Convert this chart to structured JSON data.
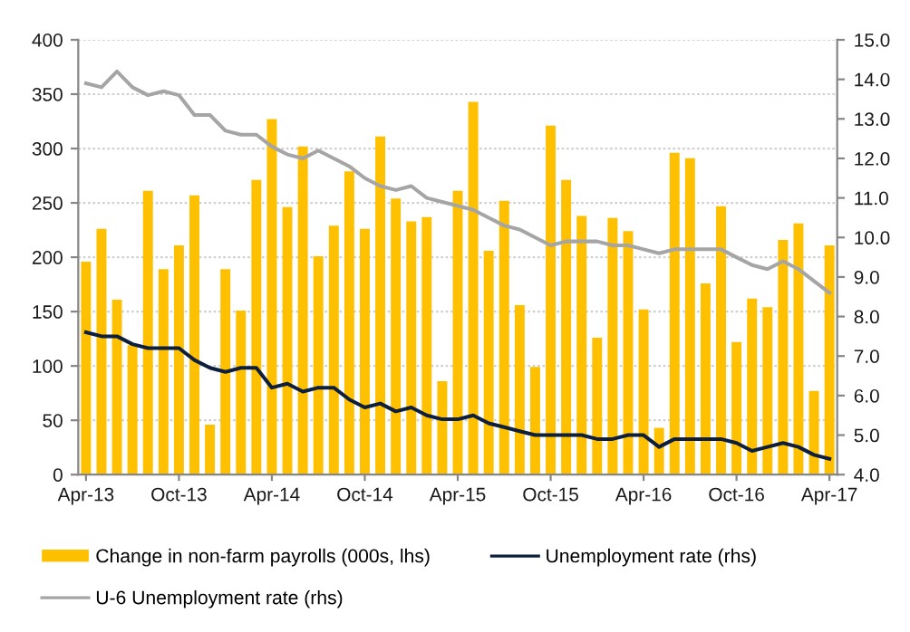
{
  "chart_data": {
    "type": "bar",
    "categories": [
      "Apr-13",
      null,
      null,
      null,
      null,
      null,
      "Oct-13",
      null,
      null,
      null,
      null,
      null,
      "Apr-14",
      null,
      null,
      null,
      null,
      null,
      "Oct-14",
      null,
      null,
      null,
      null,
      null,
      "Apr-15",
      null,
      null,
      null,
      null,
      null,
      "Oct-15",
      null,
      null,
      null,
      null,
      null,
      "Apr-16",
      null,
      null,
      null,
      null,
      null,
      "Oct-16",
      null,
      null,
      null,
      null,
      null,
      "Apr-17"
    ],
    "series": [
      {
        "name": "Change in non-farm payrolls (000s, lhs)",
        "color": "#ffc000",
        "values": [
          196,
          226,
          161,
          119,
          261,
          189,
          211,
          257,
          46,
          189,
          151,
          271,
          327,
          246,
          302,
          201,
          229,
          279,
          226,
          311,
          254,
          233,
          237,
          86,
          261,
          343,
          206,
          252,
          156,
          99,
          321,
          271,
          238,
          126,
          236,
          224,
          152,
          43,
          296,
          291,
          176,
          247,
          122,
          162,
          154,
          216,
          231,
          77,
          211
        ]
      },
      {
        "name": "Unemployment rate (rhs)",
        "type": "line",
        "axis": "y2",
        "color": "#0d1f3c",
        "values": [
          7.6,
          7.5,
          7.5,
          7.3,
          7.2,
          7.2,
          7.2,
          6.9,
          6.7,
          6.6,
          6.7,
          6.7,
          6.2,
          6.3,
          6.1,
          6.2,
          6.2,
          5.9,
          5.7,
          5.8,
          5.6,
          5.7,
          5.5,
          5.4,
          5.4,
          5.5,
          5.3,
          5.2,
          5.1,
          5.0,
          5.0,
          5.0,
          5.0,
          4.9,
          4.9,
          5.0,
          5.0,
          4.7,
          4.9,
          4.9,
          4.9,
          4.9,
          4.8,
          4.6,
          4.7,
          4.8,
          4.7,
          4.5,
          4.4
        ]
      },
      {
        "name": "U-6 Unemployment rate (rhs)",
        "type": "line",
        "axis": "y2",
        "color": "#a5a5a5",
        "values": [
          13.9,
          13.8,
          14.2,
          13.8,
          13.6,
          13.7,
          13.6,
          13.1,
          13.1,
          12.7,
          12.6,
          12.6,
          12.3,
          12.1,
          12.0,
          12.2,
          12.0,
          11.8,
          11.5,
          11.3,
          11.2,
          11.3,
          11.0,
          10.9,
          10.8,
          10.7,
          10.5,
          10.3,
          10.2,
          10.0,
          9.8,
          9.9,
          9.9,
          9.9,
          9.8,
          9.8,
          9.7,
          9.6,
          9.7,
          9.7,
          9.7,
          9.7,
          9.5,
          9.3,
          9.2,
          9.4,
          9.2,
          8.9,
          8.6
        ]
      }
    ],
    "ylim": [
      0,
      400
    ],
    "yticks": [
      0,
      50,
      100,
      150,
      200,
      250,
      300,
      350,
      400
    ],
    "y2lim": [
      4.0,
      15.0
    ],
    "y2ticks": [
      {
        "value": 4,
        "label": "4.0"
      },
      {
        "value": 5,
        "label": "5.0"
      },
      {
        "value": 6,
        "label": "6.0"
      },
      {
        "value": 7,
        "label": "7.0"
      },
      {
        "value": 8,
        "label": "8.0"
      },
      {
        "value": 9,
        "label": "9.0"
      },
      {
        "value": 10,
        "label": "10.0"
      },
      {
        "value": 11,
        "label": "11.0"
      },
      {
        "value": 12,
        "label": "12.0"
      },
      {
        "value": 13,
        "label": "13.0"
      },
      {
        "value": 14,
        "label": "14.0"
      },
      {
        "value": 15,
        "label": "15.0"
      }
    ],
    "grid": "y",
    "legend": "bottom",
    "marker": "none",
    "line_style": "solid"
  }
}
